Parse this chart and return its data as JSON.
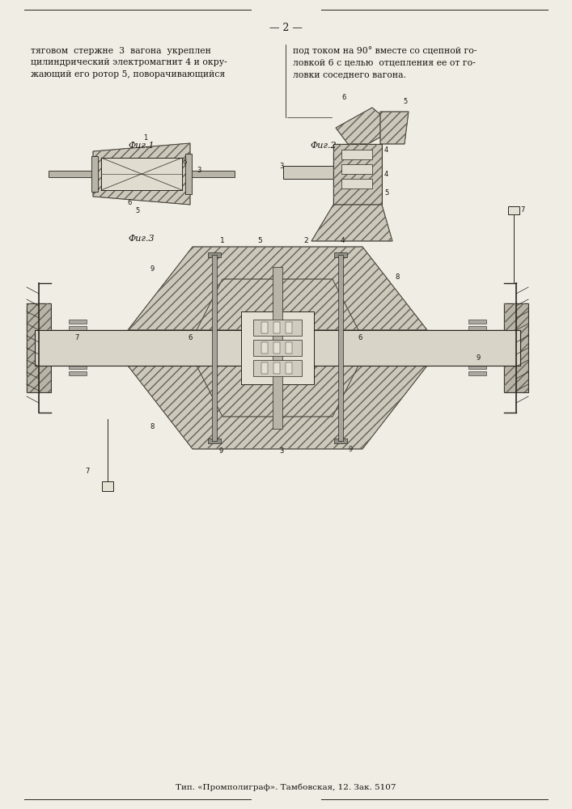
{
  "page_bg": "#f0ede4",
  "line_color": "#2a2520",
  "text_color": "#1a1510",
  "page_number": "— 2 —",
  "col1_text": "тяговом  стержне  3  вагона  укреплен\nцилиндрический электромагнит 4 и окру-\nжающий его ротор 5, поворачивающийся",
  "col2_text": "под током на 90° вместе со сцепной го-\nловкой 6 с целью  отцепления ее от го-\nловки соседнего вагона.",
  "fig1_label": "Фиг.1",
  "fig2_label": "Фиг.2",
  "fig3_label": "Фиг.3",
  "footer_text": "Тип. «Промполиграф». Тамбовская, 12. Зак. 5107",
  "hatch_color": "#666055",
  "draw_color": "#2a2520"
}
